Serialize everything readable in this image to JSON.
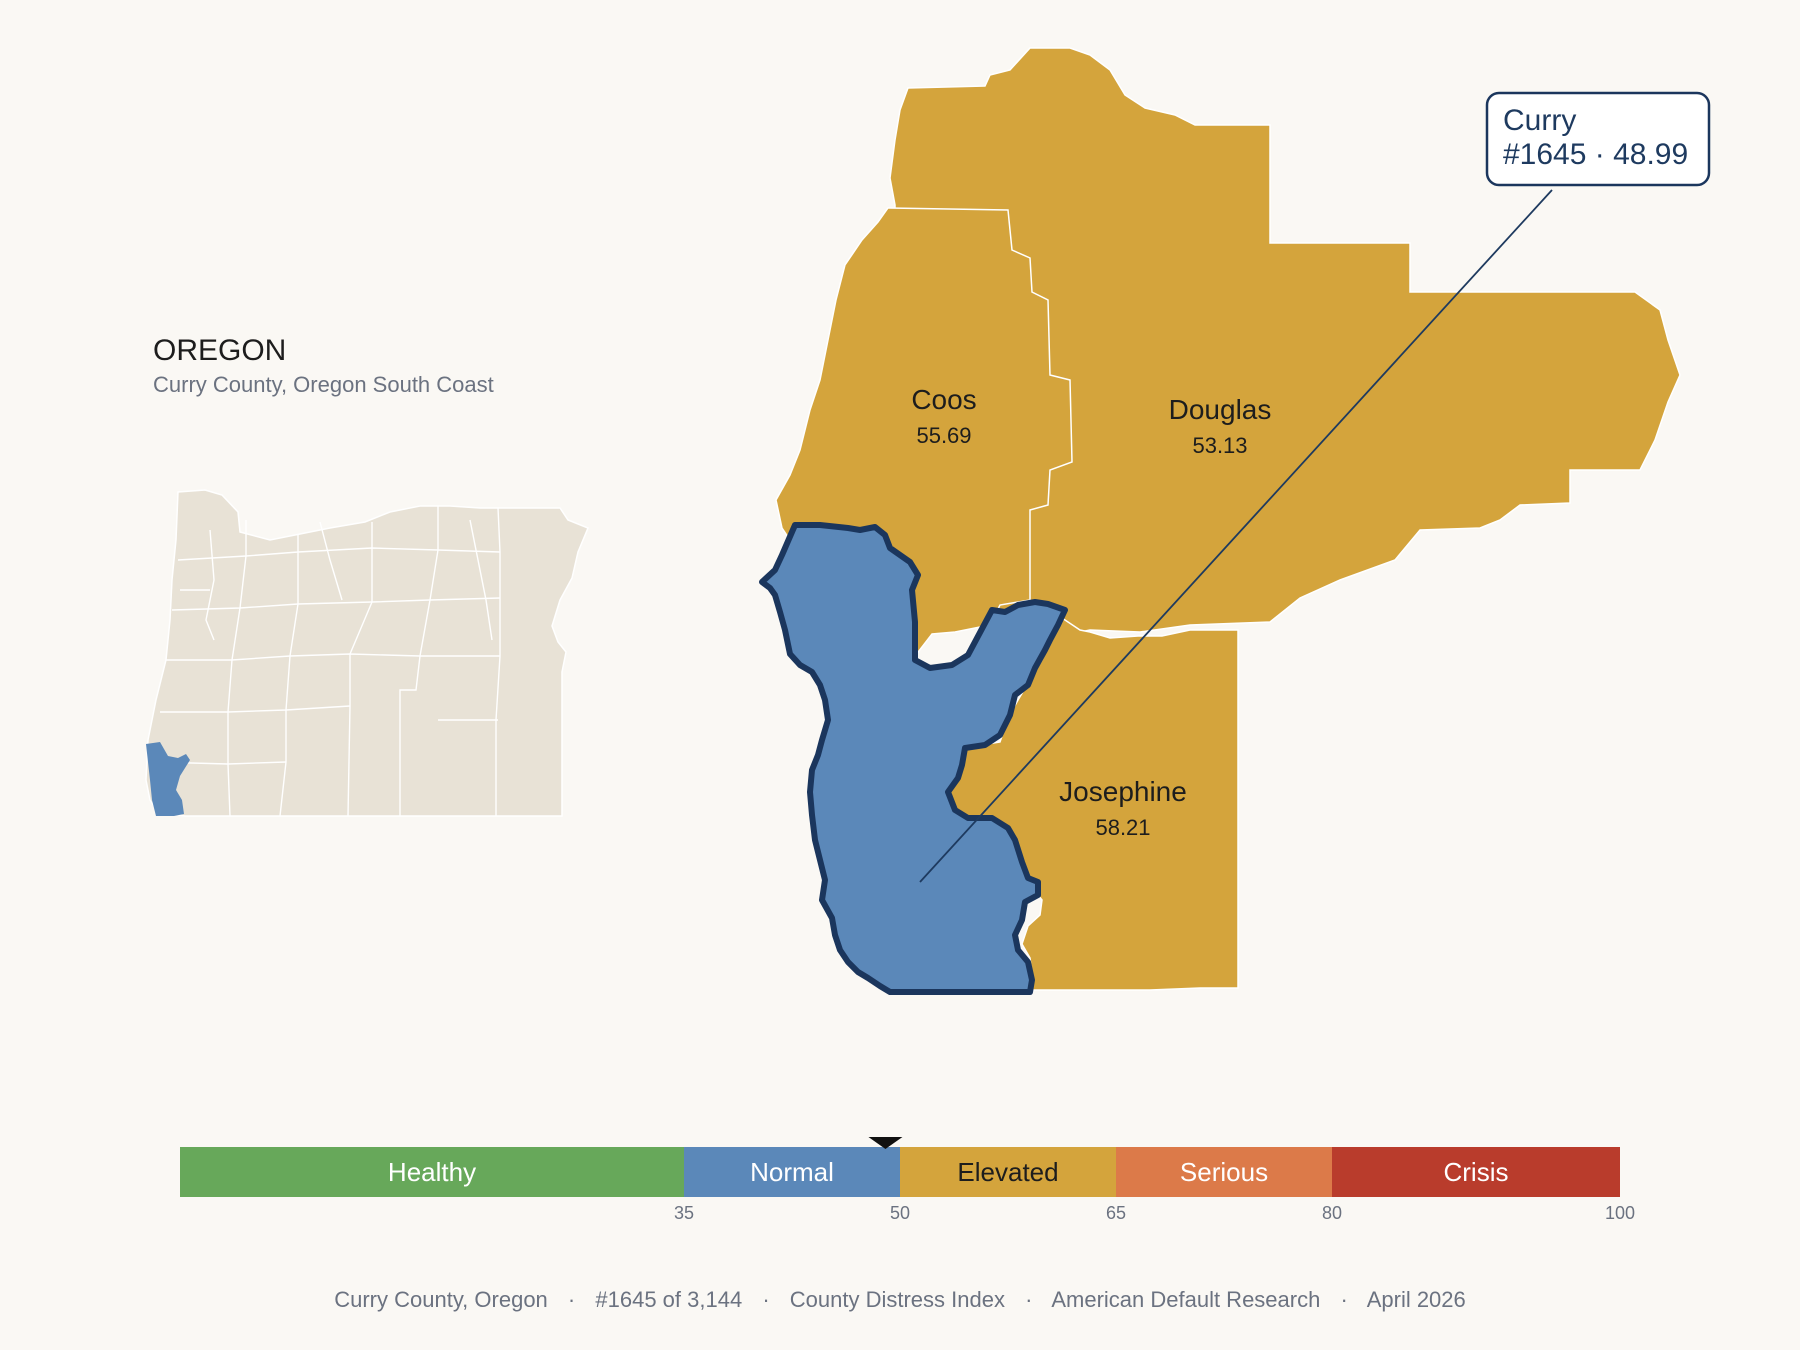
{
  "locator": {
    "state_name": "OREGON",
    "subtitle": "Curry County, Oregon South Coast"
  },
  "counties": {
    "coos": {
      "name": "Coos",
      "value": "55.69",
      "color": "#d4a43c"
    },
    "douglas": {
      "name": "Douglas",
      "value": "53.13",
      "color": "#d4a43c"
    },
    "josephine": {
      "name": "Josephine",
      "value": "58.21",
      "color": "#d4a43c"
    },
    "curry": {
      "name": "Curry",
      "value": "48.99",
      "color": "#5b88b9",
      "outline": "#1b365d"
    }
  },
  "callout": {
    "line1": "Curry",
    "line2": "#1645 · 48.99"
  },
  "scale": {
    "marker_value": 48.99,
    "bands": [
      {
        "label": "Healthy",
        "from": 0,
        "to": 35,
        "color": "#67a85a",
        "text_color": "#ffffff"
      },
      {
        "label": "Normal",
        "from": 35,
        "to": 50,
        "color": "#5b88b9",
        "text_color": "#ffffff"
      },
      {
        "label": "Elevated",
        "from": 50,
        "to": 65,
        "color": "#d4a43c",
        "text_color": "#1d1d1d"
      },
      {
        "label": "Serious",
        "from": 65,
        "to": 80,
        "color": "#dc7a49",
        "text_color": "#ffffff"
      },
      {
        "label": "Crisis",
        "from": 80,
        "to": 100,
        "color": "#b93c2c",
        "text_color": "#ffffff"
      }
    ],
    "ticks": [
      "35",
      "50",
      "65",
      "80",
      "100"
    ]
  },
  "footer": {
    "county": "Curry County, Oregon",
    "rank": "#1645 of 3,144",
    "index": "County Distress Index",
    "org": "American Default Research",
    "date": "April 2026",
    "separator": "·"
  }
}
